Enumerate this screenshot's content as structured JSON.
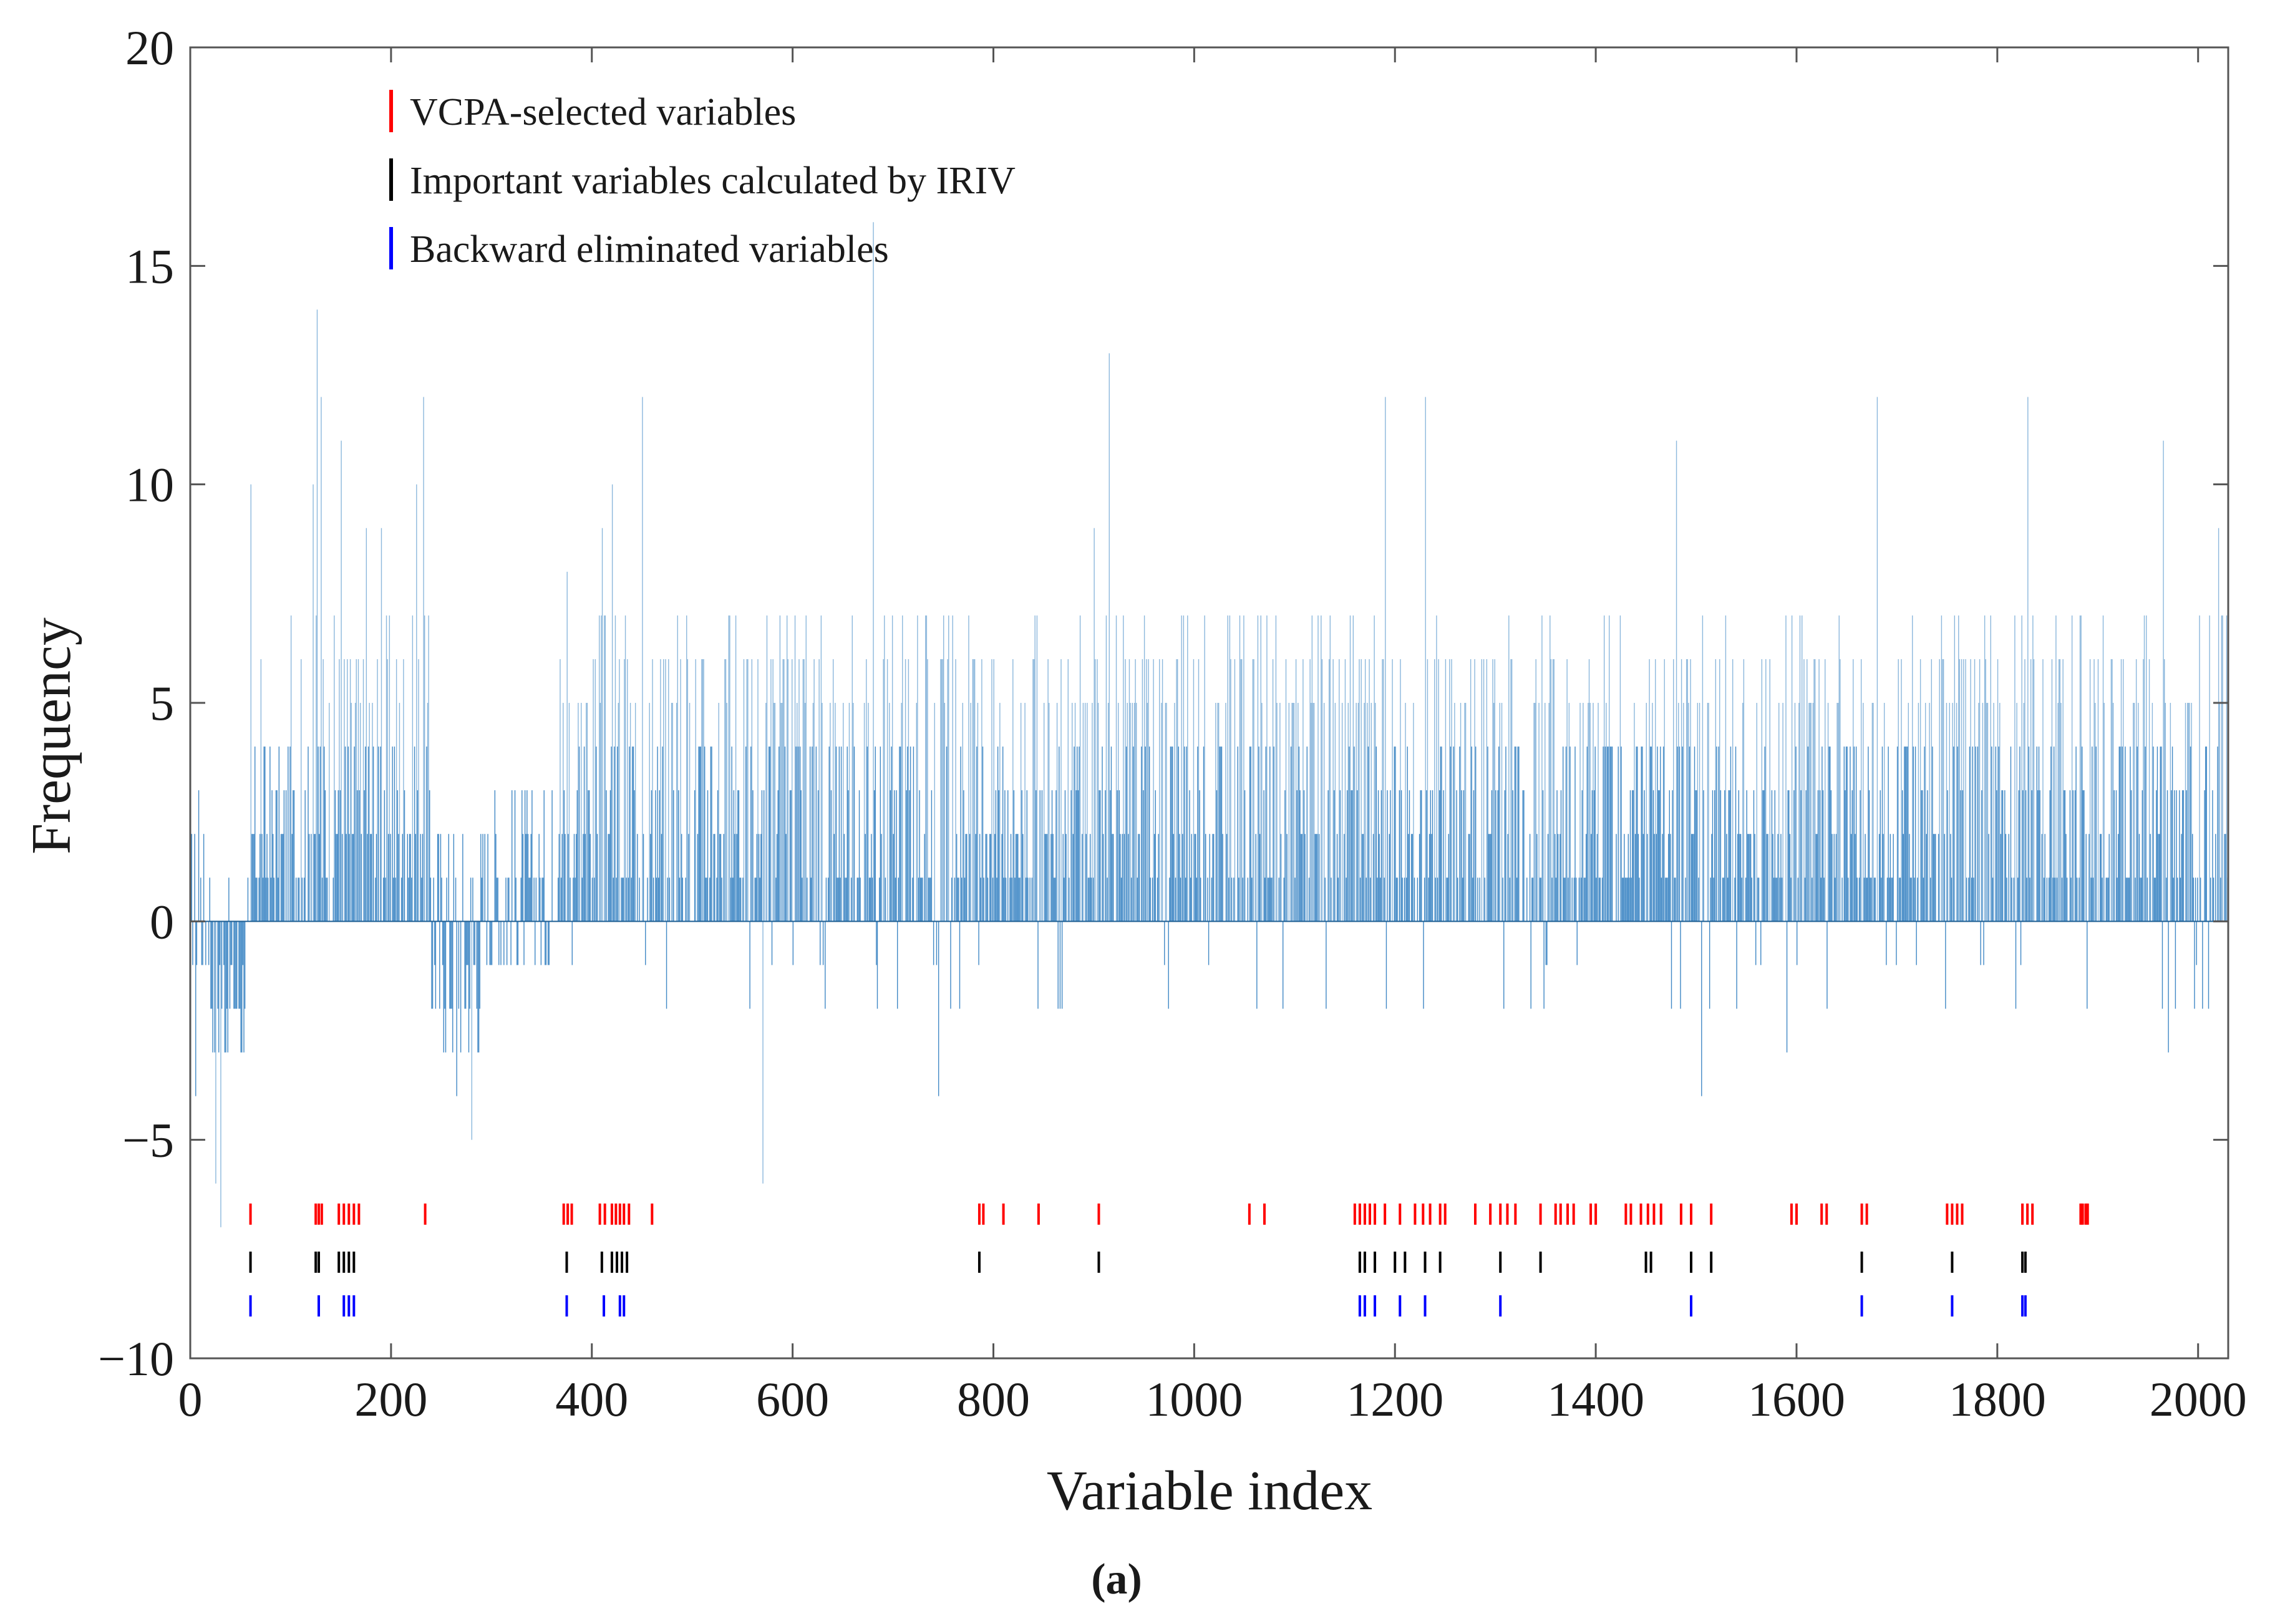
{
  "chart_data": {
    "type": "bar",
    "xlabel": "Variable index",
    "ylabel": "Frequency",
    "caption": "(a)",
    "xlim": [
      0,
      2030
    ],
    "ylim": [
      -10,
      20
    ],
    "x_ticks": [
      "0",
      "200",
      "400",
      "600",
      "800",
      "1000",
      "1200",
      "1400",
      "1600",
      "1800",
      "2000"
    ],
    "y_ticks": [
      "20",
      "15",
      "10",
      "5",
      "0",
      "−5",
      "−10"
    ],
    "x_tick_values": [
      0,
      200,
      400,
      600,
      800,
      1000,
      1200,
      1400,
      1600,
      1800,
      2000
    ],
    "y_tick_values": [
      20,
      15,
      10,
      5,
      0,
      -5,
      -10
    ],
    "grid": false,
    "legend_position": "top-left",
    "colors": {
      "frequency_bars": "#2b7bbf",
      "vcpa": "#ff0000",
      "iriv": "#000000",
      "backward": "#0000ff",
      "axis": "#555555"
    },
    "frequency_peaks": [
      {
        "x": 5,
        "y": -4
      },
      {
        "x": 8,
        "y": 3
      },
      {
        "x": 25,
        "y": -6
      },
      {
        "x": 30,
        "y": -7
      },
      {
        "x": 60,
        "y": 10
      },
      {
        "x": 70,
        "y": 6
      },
      {
        "x": 100,
        "y": 7
      },
      {
        "x": 110,
        "y": 6
      },
      {
        "x": 122,
        "y": 10
      },
      {
        "x": 126,
        "y": 14
      },
      {
        "x": 130,
        "y": 12
      },
      {
        "x": 150,
        "y": 11
      },
      {
        "x": 175,
        "y": 9
      },
      {
        "x": 190,
        "y": 9
      },
      {
        "x": 225,
        "y": 10
      },
      {
        "x": 232,
        "y": 12
      },
      {
        "x": 265,
        "y": -4
      },
      {
        "x": 280,
        "y": -5
      },
      {
        "x": 375,
        "y": 8
      },
      {
        "x": 410,
        "y": 9
      },
      {
        "x": 420,
        "y": 10
      },
      {
        "x": 450,
        "y": 12
      },
      {
        "x": 570,
        "y": -6
      },
      {
        "x": 680,
        "y": 16
      },
      {
        "x": 745,
        "y": -4
      },
      {
        "x": 900,
        "y": 9
      },
      {
        "x": 915,
        "y": 13
      },
      {
        "x": 1190,
        "y": 12
      },
      {
        "x": 1230,
        "y": 12
      },
      {
        "x": 1480,
        "y": 11
      },
      {
        "x": 1505,
        "y": -4
      },
      {
        "x": 1590,
        "y": -3
      },
      {
        "x": 1680,
        "y": 12
      },
      {
        "x": 1830,
        "y": 12
      },
      {
        "x": 1965,
        "y": 11
      },
      {
        "x": 1970,
        "y": -3
      },
      {
        "x": 2020,
        "y": 9
      }
    ],
    "marker_rows": [
      {
        "name": "VCPA-selected variables",
        "y": -6.7,
        "x": [
          60,
          125,
          128,
          131,
          148,
          153,
          158,
          163,
          168,
          234,
          372,
          376,
          380,
          408,
          413,
          420,
          424,
          428,
          432,
          437,
          460,
          786,
          790,
          810,
          845,
          905,
          1055,
          1070,
          1160,
          1165,
          1170,
          1175,
          1180,
          1190,
          1205,
          1220,
          1228,
          1235,
          1245,
          1250,
          1280,
          1295,
          1305,
          1312,
          1320,
          1345,
          1360,
          1365,
          1372,
          1378,
          1395,
          1400,
          1430,
          1435,
          1445,
          1452,
          1458,
          1465,
          1485,
          1495,
          1515,
          1595,
          1600,
          1625,
          1630,
          1665,
          1670,
          1750,
          1755,
          1760,
          1765,
          1825,
          1830,
          1835,
          1883,
          1885,
          1888,
          1890
        ]
      },
      {
        "name": "Important variables calculated by IRIV",
        "y": -7.8,
        "x": [
          60,
          125,
          128,
          148,
          153,
          158,
          163,
          375,
          410,
          420,
          425,
          430,
          435,
          786,
          905,
          1165,
          1170,
          1180,
          1200,
          1210,
          1230,
          1245,
          1305,
          1345,
          1450,
          1455,
          1495,
          1515,
          1665,
          1755,
          1825,
          1828
        ]
      },
      {
        "name": "Backward eliminated variables",
        "y": -8.8,
        "x": [
          60,
          128,
          153,
          158,
          163,
          375,
          412,
          428,
          432,
          1165,
          1170,
          1180,
          1205,
          1230,
          1305,
          1495,
          1665,
          1755,
          1825,
          1828
        ]
      }
    ]
  }
}
